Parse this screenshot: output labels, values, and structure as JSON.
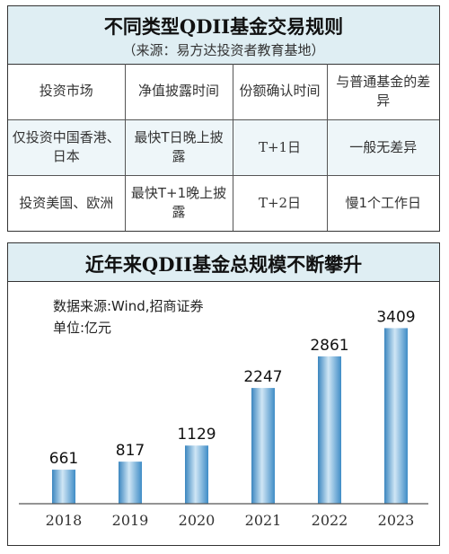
{
  "table": {
    "title": "不同类型QDII基金交易规则",
    "subtitle": "（来源：易方达投资者教育基地）",
    "headers": [
      "投资市场",
      "净值披露时间",
      "份额确认时间",
      "与普通基金的差异"
    ],
    "rows": [
      [
        "仅投资中国香港、日本",
        "最快T日晚上披露",
        "T+1日",
        "一般无差异"
      ],
      [
        "投资美国、欧洲",
        "最快T+1晚上披露",
        "T+2日",
        "慢1个工作日"
      ]
    ]
  },
  "chart_data": {
    "type": "bar",
    "title": "近年来QDII基金总规模不断攀升",
    "source": "数据来源:Wind,招商证券",
    "unit": "单位:亿元",
    "categories": [
      "2018",
      "2019",
      "2020",
      "2021",
      "2022",
      "2023"
    ],
    "values": [
      661,
      817,
      1129,
      2247,
      2861,
      3409
    ],
    "ylim": [
      0,
      3800
    ],
    "grid": false,
    "bar_color": "#5aa6d6"
  }
}
